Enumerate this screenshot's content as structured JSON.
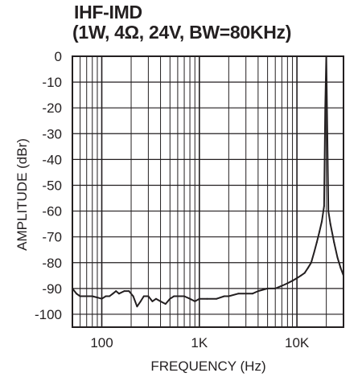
{
  "chart_data": {
    "type": "line",
    "title": "IHF-IMD",
    "subtitle": "(1W, 4Ω, 24V, BW=80KHz)",
    "xlabel": "FREQUENCY (Hz)",
    "ylabel": "AMPLITUDE (dBr)",
    "x_scale": "log",
    "xlim": [
      50,
      30000
    ],
    "ylim": [
      -105,
      0
    ],
    "grid": true,
    "x_ticks": [
      {
        "value": 100,
        "label": "100"
      },
      {
        "value": 1000,
        "label": "1K"
      },
      {
        "value": 10000,
        "label": "10K"
      }
    ],
    "y_ticks": [
      {
        "value": 0,
        "label": "0"
      },
      {
        "value": -10,
        "label": "-10"
      },
      {
        "value": -20,
        "label": "-20"
      },
      {
        "value": -30,
        "label": "-30"
      },
      {
        "value": -40,
        "label": "-40"
      },
      {
        "value": -50,
        "label": "-50"
      },
      {
        "value": -60,
        "label": "-60"
      },
      {
        "value": -70,
        "label": "-70"
      },
      {
        "value": -80,
        "label": "-80"
      },
      {
        "value": -90,
        "label": "-90"
      },
      {
        "value": -100,
        "label": "-100"
      }
    ],
    "series": [
      {
        "color": "#231f20",
        "x": [
          50,
          55,
          60,
          70,
          80,
          90,
          100,
          110,
          120,
          130,
          140,
          150,
          170,
          190,
          210,
          230,
          250,
          270,
          300,
          330,
          360,
          400,
          450,
          500,
          550,
          600,
          700,
          800,
          900,
          1000,
          1200,
          1500,
          1800,
          2000,
          2500,
          3000,
          3500,
          4000,
          5000,
          6000,
          7000,
          8000,
          9000,
          10000,
          11000,
          12000,
          13000,
          14000,
          15000,
          16000,
          17000,
          18000,
          19000,
          19500,
          20000,
          20500,
          21000,
          22000,
          24000,
          26000,
          28000,
          30000
        ],
        "y": [
          -90,
          -92,
          -93,
          -93,
          -93,
          -93.5,
          -94,
          -93,
          -93,
          -92,
          -91,
          -92,
          -91,
          -91,
          -93,
          -97,
          -95,
          -93,
          -93,
          -95,
          -94,
          -95,
          -96,
          -94,
          -93,
          -93,
          -93,
          -94,
          -95,
          -94,
          -94,
          -94,
          -93,
          -93,
          -92,
          -92,
          -92,
          -91,
          -90,
          -90,
          -89,
          -88,
          -87,
          -86,
          -85,
          -84,
          -82,
          -80,
          -76,
          -72,
          -68,
          -64,
          -58,
          -20,
          0,
          -30,
          -60,
          -65,
          -72,
          -78,
          -82,
          -85
        ]
      }
    ]
  }
}
